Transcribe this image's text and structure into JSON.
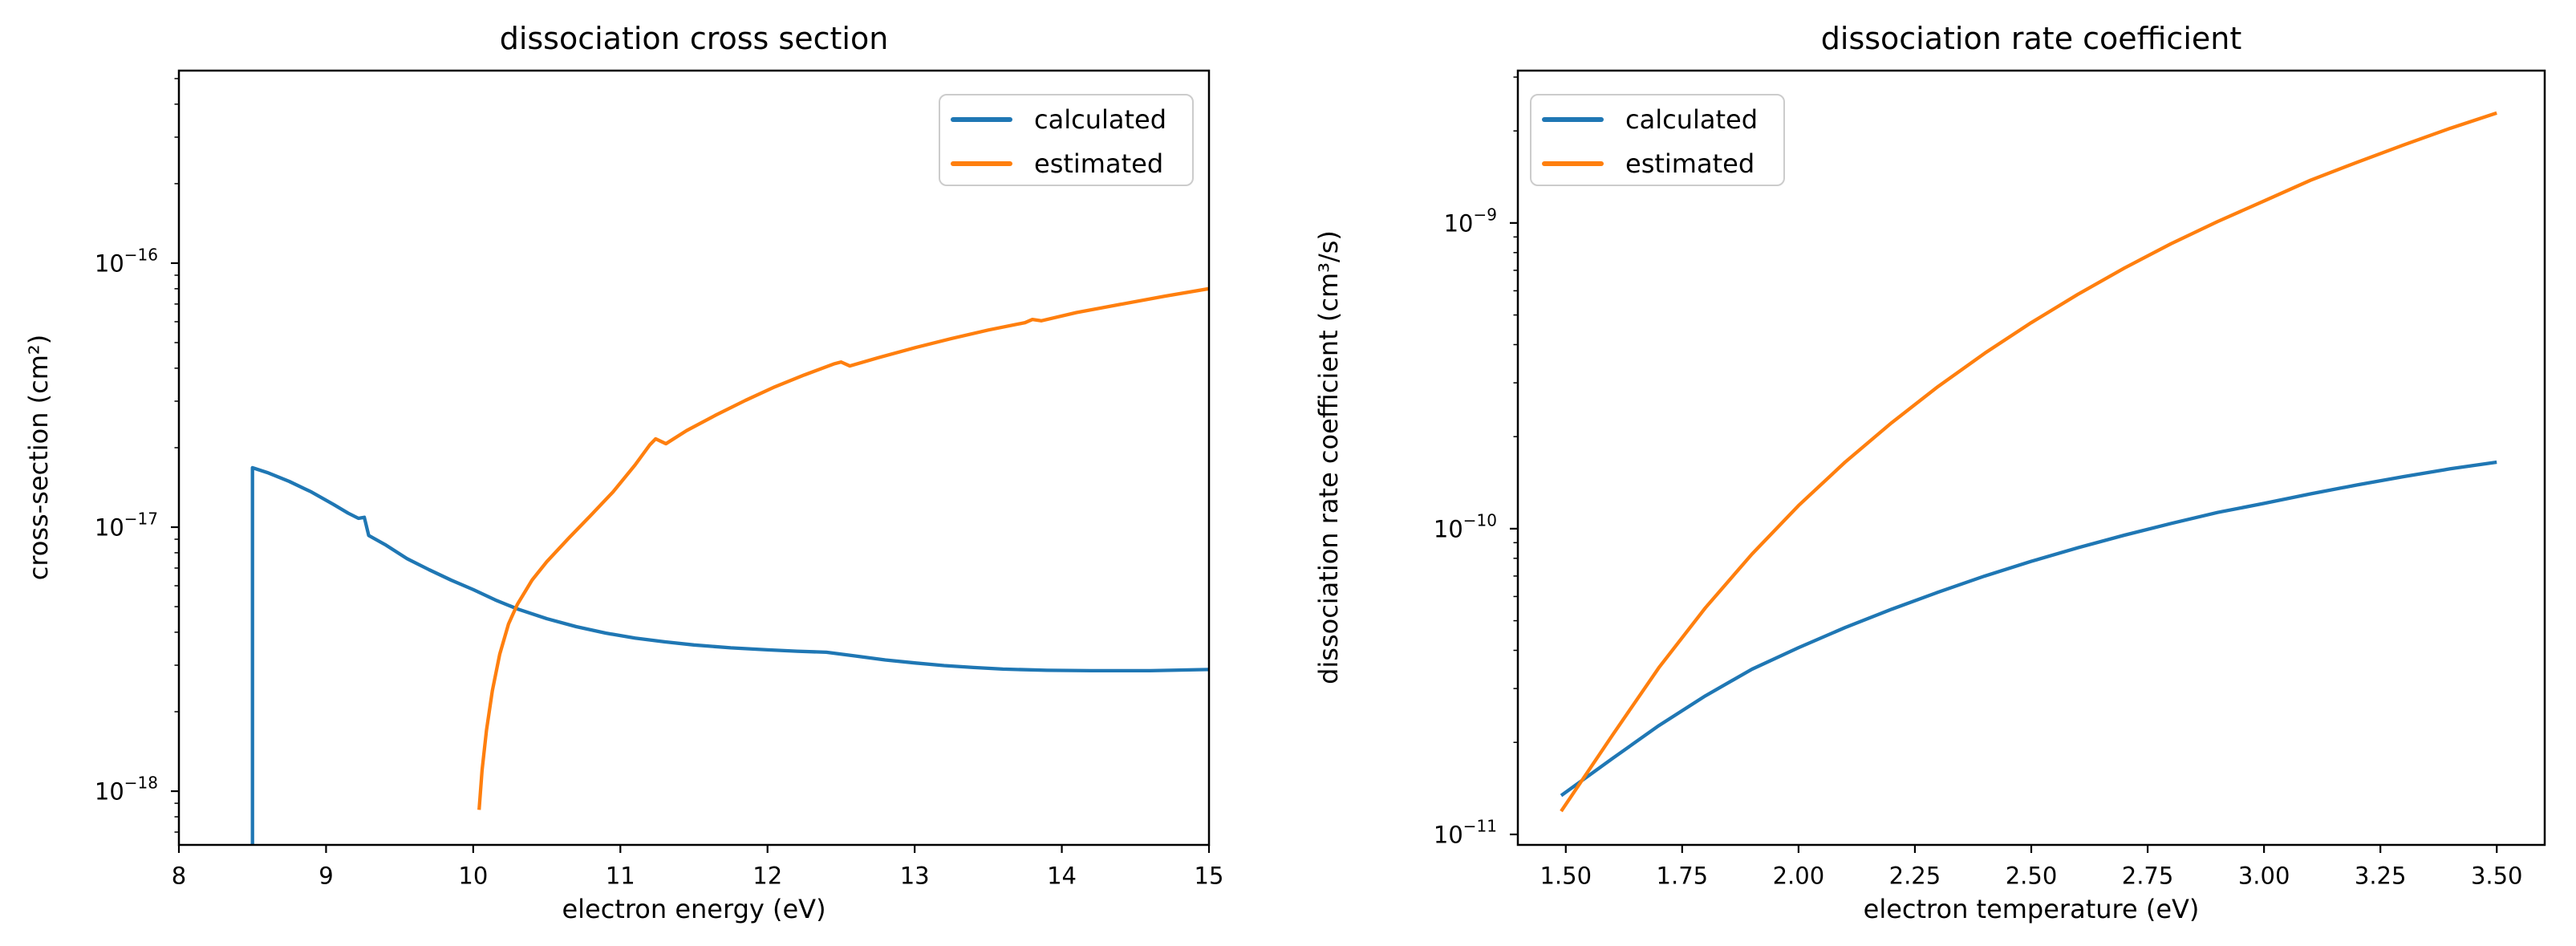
{
  "figure": {
    "background": "#ffffff"
  },
  "colors": {
    "calculated": "#1f77b4",
    "estimated": "#ff7f0e",
    "axis": "#000000",
    "text": "#000000",
    "legend_border": "#cccccc",
    "legend_bg": "#ffffff"
  },
  "chart_data": [
    {
      "type": "line",
      "title": "dissociation cross section",
      "xlabel": "electron energy (eV)",
      "ylabel": "cross-section (cm²)",
      "xscale": "linear",
      "yscale": "log",
      "xlim": [
        8,
        15
      ],
      "ylim": [
        6.26e-19,
        5.36e-16
      ],
      "xticks": [
        8,
        9,
        10,
        11,
        12,
        13,
        14,
        15
      ],
      "xtick_labels": [
        "8",
        "9",
        "10",
        "11",
        "12",
        "13",
        "14",
        "15"
      ],
      "yticks": [
        1e-16,
        1e-17,
        1e-18
      ],
      "ytick_exponents": [
        "−16",
        "−17",
        "−18"
      ],
      "grid": false,
      "legend_position": "upper right",
      "series": [
        {
          "name": "calculated",
          "color": "calculated",
          "points": [
            [
              8.5,
              5e-19
            ],
            [
              8.5,
              1.68e-17
            ],
            [
              8.6,
              1.61e-17
            ],
            [
              8.75,
              1.49e-17
            ],
            [
              8.9,
              1.36e-17
            ],
            [
              9.05,
              1.22e-17
            ],
            [
              9.15,
              1.13e-17
            ],
            [
              9.22,
              1.08e-17
            ],
            [
              9.26,
              1.09e-17
            ],
            [
              9.29,
              9.3e-18
            ],
            [
              9.4,
              8.6e-18
            ],
            [
              9.55,
              7.6e-18
            ],
            [
              9.7,
              6.9e-18
            ],
            [
              9.85,
              6.3e-18
            ],
            [
              10.0,
              5.8e-18
            ],
            [
              10.15,
              5.3e-18
            ],
            [
              10.3,
              4.9e-18
            ],
            [
              10.5,
              4.5e-18
            ],
            [
              10.7,
              4.2e-18
            ],
            [
              10.9,
              3.97e-18
            ],
            [
              11.1,
              3.8e-18
            ],
            [
              11.3,
              3.68e-18
            ],
            [
              11.5,
              3.58e-18
            ],
            [
              11.75,
              3.49e-18
            ],
            [
              12.0,
              3.43e-18
            ],
            [
              12.2,
              3.39e-18
            ],
            [
              12.4,
              3.36e-18
            ],
            [
              12.6,
              3.25e-18
            ],
            [
              12.8,
              3.14e-18
            ],
            [
              13.0,
              3.06e-18
            ],
            [
              13.2,
              2.99e-18
            ],
            [
              13.4,
              2.94e-18
            ],
            [
              13.6,
              2.9e-18
            ],
            [
              13.9,
              2.87e-18
            ],
            [
              14.2,
              2.86e-18
            ],
            [
              14.6,
              2.86e-18
            ],
            [
              15.0,
              2.89e-18
            ]
          ]
        },
        {
          "name": "estimated",
          "color": "estimated",
          "points": [
            [
              10.04,
              8.5e-19
            ],
            [
              10.06,
              1.2e-18
            ],
            [
              10.09,
              1.7e-18
            ],
            [
              10.13,
              2.4e-18
            ],
            [
              10.18,
              3.3e-18
            ],
            [
              10.24,
              4.3e-18
            ],
            [
              10.3,
              5.1e-18
            ],
            [
              10.4,
              6.3e-18
            ],
            [
              10.5,
              7.4e-18
            ],
            [
              10.65,
              9.1e-18
            ],
            [
              10.8,
              1.11e-17
            ],
            [
              10.95,
              1.36e-17
            ],
            [
              11.1,
              1.72e-17
            ],
            [
              11.2,
              2.05e-17
            ],
            [
              11.24,
              2.16e-17
            ],
            [
              11.31,
              2.07e-17
            ],
            [
              11.45,
              2.32e-17
            ],
            [
              11.65,
              2.66e-17
            ],
            [
              11.85,
              3.02e-17
            ],
            [
              12.05,
              3.4e-17
            ],
            [
              12.25,
              3.77e-17
            ],
            [
              12.45,
              4.15e-17
            ],
            [
              12.5,
              4.22e-17
            ],
            [
              12.56,
              4.08e-17
            ],
            [
              12.75,
              4.38e-17
            ],
            [
              13.0,
              4.78e-17
            ],
            [
              13.25,
              5.18e-17
            ],
            [
              13.5,
              5.58e-17
            ],
            [
              13.75,
              5.95e-17
            ],
            [
              13.8,
              6.12e-17
            ],
            [
              13.86,
              6.05e-17
            ],
            [
              14.1,
              6.5e-17
            ],
            [
              14.4,
              6.98e-17
            ],
            [
              14.7,
              7.5e-17
            ],
            [
              15.0,
              8e-17
            ]
          ]
        }
      ]
    },
    {
      "type": "line",
      "title": "dissociation rate coefficient",
      "xlabel": "electron temperature (eV)",
      "ylabel": "dissociation rate coefficient (cm³/s)",
      "xscale": "linear",
      "yscale": "log",
      "xlim": [
        1.397,
        3.603
      ],
      "ylim": [
        9.24e-12,
        3.15e-09
      ],
      "xticks": [
        1.5,
        1.75,
        2.0,
        2.25,
        2.5,
        2.75,
        3.0,
        3.25,
        3.5
      ],
      "xtick_labels": [
        "1.50",
        "1.75",
        "2.00",
        "2.25",
        "2.50",
        "2.75",
        "3.00",
        "3.25",
        "3.50"
      ],
      "yticks": [
        1e-09,
        1e-10,
        1e-11
      ],
      "ytick_exponents": [
        "−9",
        "−10",
        "−11"
      ],
      "grid": false,
      "legend_position": "upper left",
      "series": [
        {
          "name": "calculated",
          "color": "calculated",
          "points": [
            [
              1.49,
              1.34e-11
            ],
            [
              1.6,
              1.77e-11
            ],
            [
              1.7,
              2.27e-11
            ],
            [
              1.8,
              2.84e-11
            ],
            [
              1.9,
              3.47e-11
            ],
            [
              2.0,
              4.08e-11
            ],
            [
              2.1,
              4.75e-11
            ],
            [
              2.2,
              5.45e-11
            ],
            [
              2.3,
              6.2e-11
            ],
            [
              2.4,
              7e-11
            ],
            [
              2.5,
              7.82e-11
            ],
            [
              2.6,
              8.66e-11
            ],
            [
              2.7,
              9.52e-11
            ],
            [
              2.8,
              1.04e-10
            ],
            [
              2.9,
              1.13e-10
            ],
            [
              3.0,
              1.21e-10
            ],
            [
              3.1,
              1.3e-10
            ],
            [
              3.2,
              1.39e-10
            ],
            [
              3.3,
              1.48e-10
            ],
            [
              3.4,
              1.57e-10
            ],
            [
              3.5,
              1.65e-10
            ]
          ]
        },
        {
          "name": "estimated",
          "color": "estimated",
          "points": [
            [
              1.49,
              1.19e-11
            ],
            [
              1.6,
              2.11e-11
            ],
            [
              1.7,
              3.51e-11
            ],
            [
              1.8,
              5.51e-11
            ],
            [
              1.9,
              8.26e-11
            ],
            [
              2.0,
              1.19e-10
            ],
            [
              2.1,
              1.65e-10
            ],
            [
              2.2,
              2.22e-10
            ],
            [
              2.3,
              2.92e-10
            ],
            [
              2.4,
              3.75e-10
            ],
            [
              2.5,
              4.72e-10
            ],
            [
              2.6,
              5.84e-10
            ],
            [
              2.7,
              7.12e-10
            ],
            [
              2.8,
              8.55e-10
            ],
            [
              2.9,
              1.01e-09
            ],
            [
              3.0,
              1.18e-09
            ],
            [
              3.1,
              1.38e-09
            ],
            [
              3.2,
              1.58e-09
            ],
            [
              3.3,
              1.8e-09
            ],
            [
              3.4,
              2.04e-09
            ],
            [
              3.5,
              2.29e-09
            ]
          ]
        }
      ]
    }
  ]
}
